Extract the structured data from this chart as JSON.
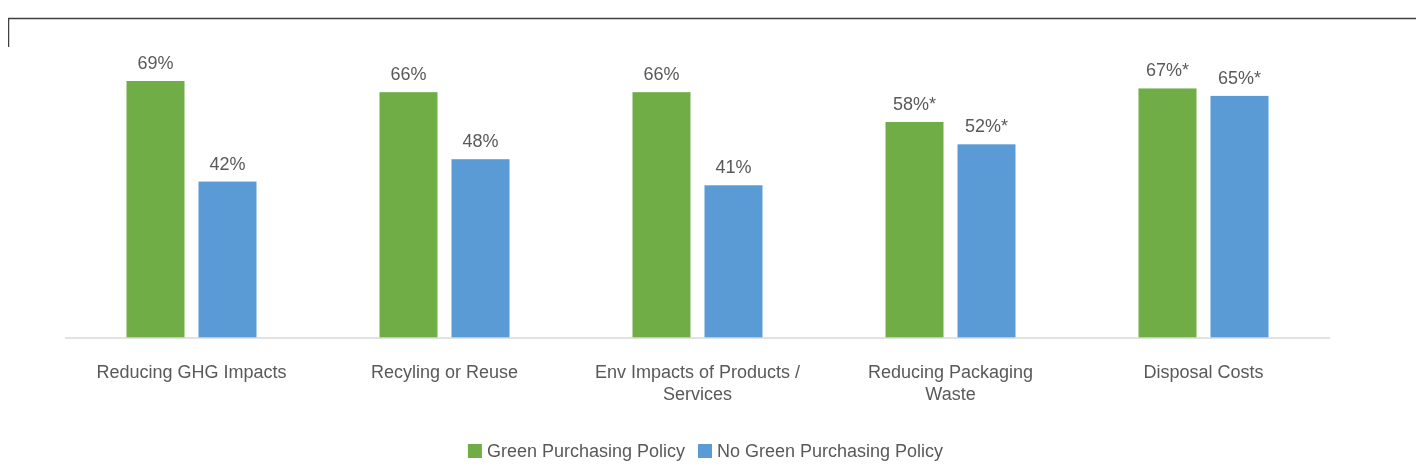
{
  "chart_data": {
    "type": "bar",
    "relative": false,
    "categories": [
      "Reducing GHG Impacts",
      "Recyling or Reuse",
      "Env Impacts of Products / Services",
      "Reducing Packaging Waste",
      "Disposal Costs"
    ],
    "series": [
      {
        "name": "Green Purchasing Policy",
        "color": "#70ad47",
        "values": [
          69,
          66,
          66,
          58,
          67
        ],
        "value_labels": [
          "69%",
          "66%",
          "66%",
          "58%*",
          "67%*"
        ]
      },
      {
        "name": "No Green Purchasing Policy",
        "color": "#5b9bd5",
        "values": [
          42,
          48,
          41,
          52,
          65
        ],
        "value_labels": [
          "42%",
          "48%",
          "41%",
          "52%*",
          "65%*"
        ]
      }
    ],
    "legend": "bottom"
  }
}
